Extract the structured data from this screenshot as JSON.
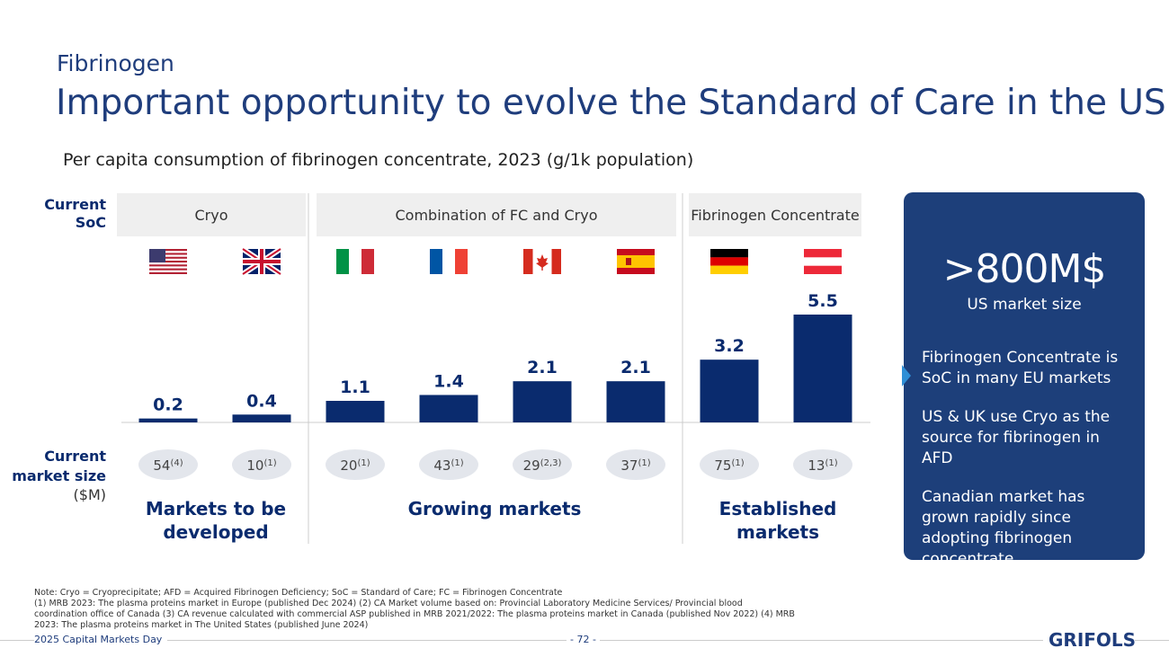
{
  "header": {
    "section": "Fibrinogen",
    "title": "Important opportunity to evolve the Standard of Care in the US"
  },
  "chart_data": {
    "type": "bar",
    "title": "Per capita consumption of fibrinogen concentrate, 2023 (g/1k population)",
    "categories": [
      null,
      null,
      null,
      null,
      null,
      null,
      null,
      null
    ],
    "values": [
      0.2,
      0.4,
      1.1,
      1.4,
      2.1,
      2.1,
      3.2,
      5.5
    ],
    "color": "#0a2b6e"
  },
  "soc": {
    "label": "Current SoC",
    "groups": [
      "Cryo",
      "Combination of FC and Cryo",
      "Fibrinogen Concentrate"
    ]
  },
  "market_size": {
    "label": "Current market size",
    "unit": "($M)",
    "values": [
      {
        "value": "54",
        "note": "(4)"
      },
      {
        "value": "10",
        "note": "(1)"
      },
      {
        "value": "20",
        "note": "(1)"
      },
      {
        "value": "43",
        "note": "(1)"
      },
      {
        "value": "29",
        "note": "(2,3)"
      },
      {
        "value": "37",
        "note": "(1)"
      },
      {
        "value": "75",
        "note": "(1)"
      },
      {
        "value": "13",
        "note": "(1)"
      }
    ]
  },
  "market_groups": [
    "Markets to be developed",
    "Growing markets",
    "Established markets"
  ],
  "panel": {
    "headline": ">800M$",
    "subheadline": "US market size",
    "points": [
      "Fibrinogen Concentrate is SoC in many EU markets",
      "US & UK use Cryo as the source for fibrinogen in AFD",
      "Canadian market has grown rapidly since adopting fibrinogen concentrate"
    ]
  },
  "notes": [
    "Note: Cryo = Cryoprecipitate; AFD = Acquired Fibrinogen Deficiency; SoC = Standard of Care; FC = Fibrinogen Concentrate",
    "(1) MRB 2023: The plasma proteins market in Europe (published Dec 2024) (2) CA Market volume based on: Provincial Laboratory Medicine Services/ Provincial blood coordination office of Canada (3) CA revenue calculated with commercial ASP published in MRB 2021/2022: The plasma proteins market in Canada (published Nov 2022) (4) MRB 2023: The plasma proteins market in The United States (published June 2024)"
  ],
  "footer": {
    "event": "2025 Capital Markets Day",
    "page": "- 72 -",
    "brand": "GRIFOLS"
  }
}
